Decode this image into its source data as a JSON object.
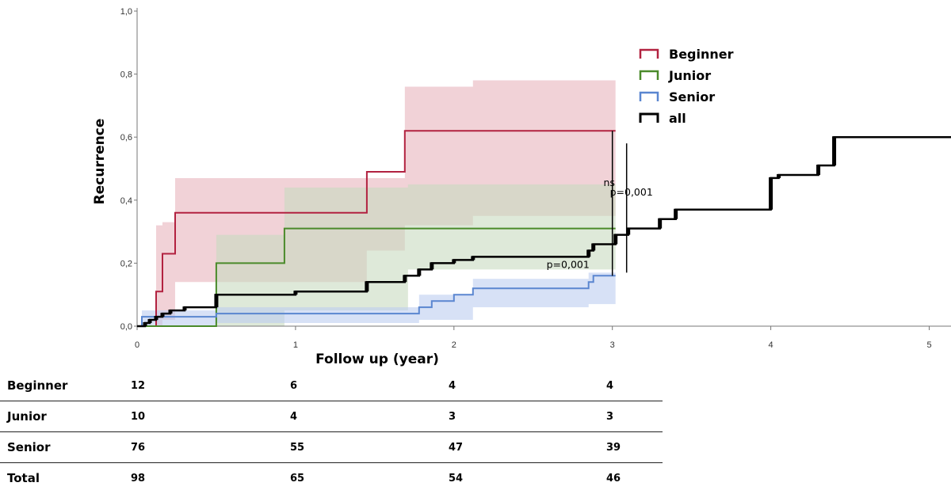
{
  "chart_data": {
    "type": "line",
    "subtype": "kaplan-meier-step",
    "xlabel": "Follow up (year)",
    "ylabel": "Recurrence",
    "xlim": [
      0,
      5.15
    ],
    "ylim": [
      0,
      1.0
    ],
    "xticks": [
      0,
      1,
      2,
      3,
      4,
      5
    ],
    "xtick_labels": [
      "0",
      "1",
      "2",
      "3",
      "4",
      "5"
    ],
    "yticks": [
      0.0,
      0.2,
      0.4,
      0.6,
      0.8,
      1.0
    ],
    "ytick_labels": [
      "0,0",
      "0,2",
      "0,4",
      "0,6",
      "0,8",
      "1,0"
    ],
    "grid": false,
    "legend_position": "top-right",
    "series": [
      {
        "name": "Beginner",
        "color": "#b22240",
        "band_color": "#e8b4bc",
        "x": [
          0.0,
          0.12,
          0.12,
          0.16,
          0.16,
          0.24,
          0.24,
          1.45,
          1.45,
          1.69,
          1.69,
          3.02
        ],
        "y": [
          0.0,
          0.0,
          0.11,
          0.11,
          0.23,
          0.23,
          0.36,
          0.36,
          0.49,
          0.49,
          0.62,
          0.62
        ],
        "ci_x": [
          0.12,
          0.16,
          0.24,
          1.45,
          1.69,
          2.12,
          3.02
        ],
        "ci_lower": [
          0.0,
          0.02,
          0.14,
          0.24,
          0.32,
          0.35,
          0.35
        ],
        "ci_upper": [
          0.32,
          0.33,
          0.47,
          0.47,
          0.76,
          0.78,
          0.78
        ]
      },
      {
        "name": "Junior",
        "color": "#4a8a2a",
        "band_color": "#c8dbbf",
        "x": [
          0.0,
          0.5,
          0.5,
          0.93,
          0.93,
          3.02
        ],
        "y": [
          0.0,
          0.0,
          0.2,
          0.2,
          0.31,
          0.31
        ],
        "ci_x": [
          0.5,
          0.93,
          1.71,
          3.02
        ],
        "ci_lower": [
          0.0,
          0.05,
          0.18,
          0.18
        ],
        "ci_upper": [
          0.29,
          0.44,
          0.45,
          0.45
        ]
      },
      {
        "name": "Senior",
        "color": "#5a86d0",
        "band_color": "#bccdf0",
        "x": [
          0.0,
          0.03,
          0.03,
          0.5,
          0.5,
          1.78,
          1.78,
          1.86,
          1.86,
          2.0,
          2.0,
          2.12,
          2.12,
          2.85,
          2.85,
          2.88,
          2.88,
          3.02
        ],
        "y": [
          0.0,
          0.0,
          0.03,
          0.03,
          0.04,
          0.04,
          0.06,
          0.06,
          0.08,
          0.08,
          0.1,
          0.1,
          0.12,
          0.12,
          0.14,
          0.14,
          0.16,
          0.16
        ],
        "ci_x": [
          0.03,
          0.5,
          1.78,
          2.12,
          2.85,
          3.02
        ],
        "ci_lower": [
          0.0,
          0.01,
          0.02,
          0.06,
          0.07,
          0.1
        ],
        "ci_upper": [
          0.05,
          0.06,
          0.1,
          0.15,
          0.17,
          0.18
        ]
      },
      {
        "name": "all",
        "color": "#000000",
        "x": [
          0.0,
          0.05,
          0.05,
          0.08,
          0.08,
          0.12,
          0.12,
          0.16,
          0.16,
          0.21,
          0.21,
          0.3,
          0.3,
          0.5,
          0.5,
          1.0,
          1.0,
          1.45,
          1.45,
          1.69,
          1.69,
          1.78,
          1.78,
          1.86,
          1.86,
          2.0,
          2.0,
          2.12,
          2.12,
          2.85,
          2.85,
          2.88,
          2.88,
          3.02,
          3.02,
          3.1,
          3.1,
          3.3,
          3.3,
          3.4,
          3.4,
          4.0,
          4.0,
          4.05,
          4.05,
          4.3,
          4.3,
          4.4,
          4.4,
          5.15
        ],
        "y": [
          0.0,
          0.0,
          0.01,
          0.01,
          0.02,
          0.02,
          0.03,
          0.03,
          0.04,
          0.04,
          0.05,
          0.05,
          0.06,
          0.06,
          0.1,
          0.1,
          0.11,
          0.11,
          0.14,
          0.14,
          0.16,
          0.16,
          0.18,
          0.18,
          0.2,
          0.2,
          0.21,
          0.21,
          0.22,
          0.22,
          0.24,
          0.24,
          0.26,
          0.26,
          0.29,
          0.29,
          0.31,
          0.31,
          0.34,
          0.34,
          0.37,
          0.37,
          0.47,
          0.47,
          0.48,
          0.48,
          0.51,
          0.51,
          0.6,
          0.6
        ]
      }
    ],
    "annotations": [
      {
        "text": "ns",
        "x": 2.98,
        "y": 0.445
      },
      {
        "text": "p=0,001",
        "x": 3.12,
        "y": 0.415
      },
      {
        "text": "p=0,001",
        "x": 2.72,
        "y": 0.185
      }
    ],
    "brackets": [
      {
        "x": 3.0,
        "y0": 0.29,
        "y1": 0.62
      },
      {
        "x": 3.09,
        "y0": 0.17,
        "y1": 0.58
      },
      {
        "x": 3.0,
        "y0": 0.16,
        "y1": 0.29
      }
    ]
  },
  "risk_table": {
    "rows": [
      {
        "label": "Beginner",
        "values": [
          "12",
          "6",
          "4",
          "4"
        ]
      },
      {
        "label": "Junior",
        "values": [
          "10",
          "4",
          "3",
          "3"
        ]
      },
      {
        "label": "Senior",
        "values": [
          "76",
          "55",
          "47",
          "39"
        ]
      },
      {
        "label": "Total",
        "values": [
          "98",
          "65",
          "54",
          "46"
        ]
      }
    ]
  }
}
